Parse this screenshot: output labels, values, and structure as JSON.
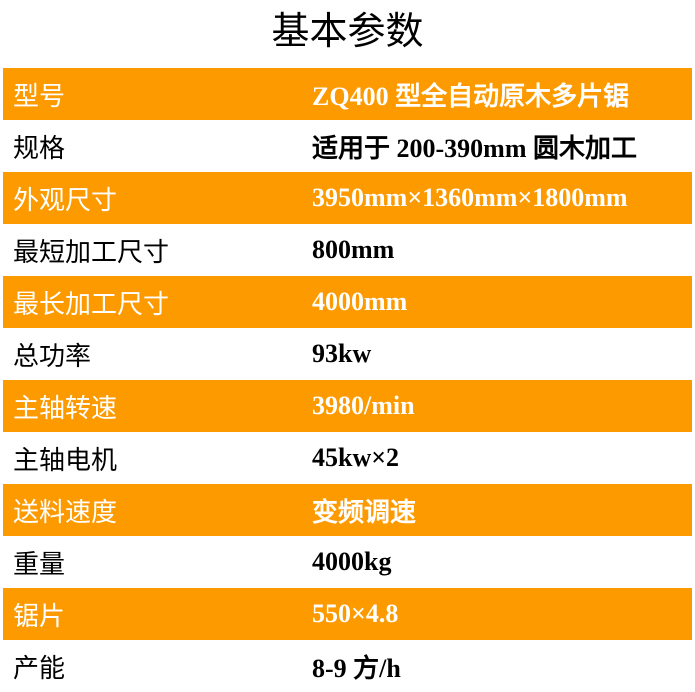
{
  "title": "基本参数",
  "accent_color": "#fc9a00",
  "rows": [
    {
      "label": "型号",
      "value": "ZQ400 型全自动原木多片锯"
    },
    {
      "label": "规格",
      "value": "适用于 200-390mm 圆木加工"
    },
    {
      "label": "外观尺寸",
      "value": "3950mm×1360mm×1800mm"
    },
    {
      "label": "最短加工尺寸",
      "value": "800mm"
    },
    {
      "label": "最长加工尺寸",
      "value": "4000mm"
    },
    {
      "label": "总功率",
      "value": "93kw"
    },
    {
      "label": "主轴转速",
      "value": "3980/min"
    },
    {
      "label": "主轴电机",
      "value": "45kw×2"
    },
    {
      "label": "送料速度",
      "value": "变频调速"
    },
    {
      "label": "重量",
      "value": "4000kg"
    },
    {
      "label": "锯片",
      "value": "550×4.8"
    },
    {
      "label": "产能",
      "value": "8-9 方/h"
    }
  ]
}
